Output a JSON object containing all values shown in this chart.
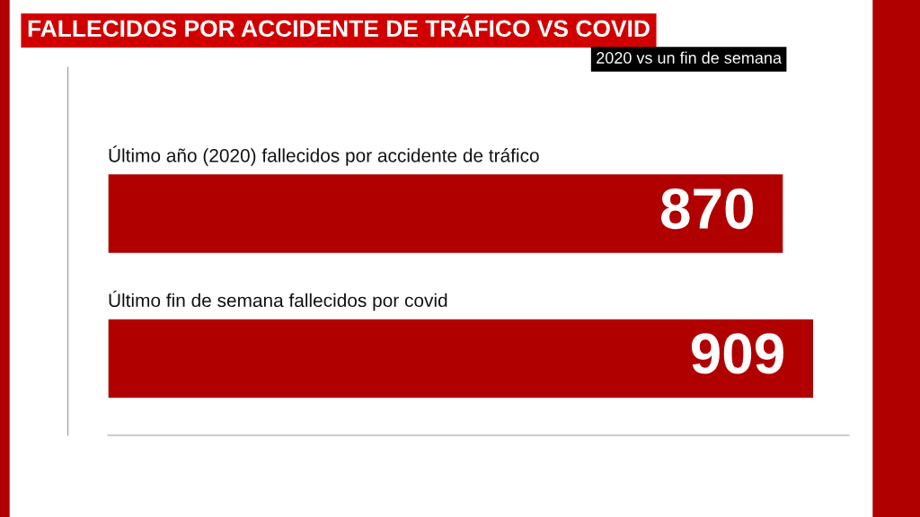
{
  "chart_data": {
    "type": "bar",
    "orientation": "horizontal",
    "title": "FALLECIDOS POR ACCIDENTE DE TRÁFICO VS COVID",
    "subtitle": "2020 vs un fin de semana",
    "categories": [
      "Último año (2020) fallecidos por accidente de tráfico",
      "Último fin de semana fallecidos por covid"
    ],
    "values": [
      870,
      909
    ],
    "color": "#b00000",
    "data_labels": true
  }
}
